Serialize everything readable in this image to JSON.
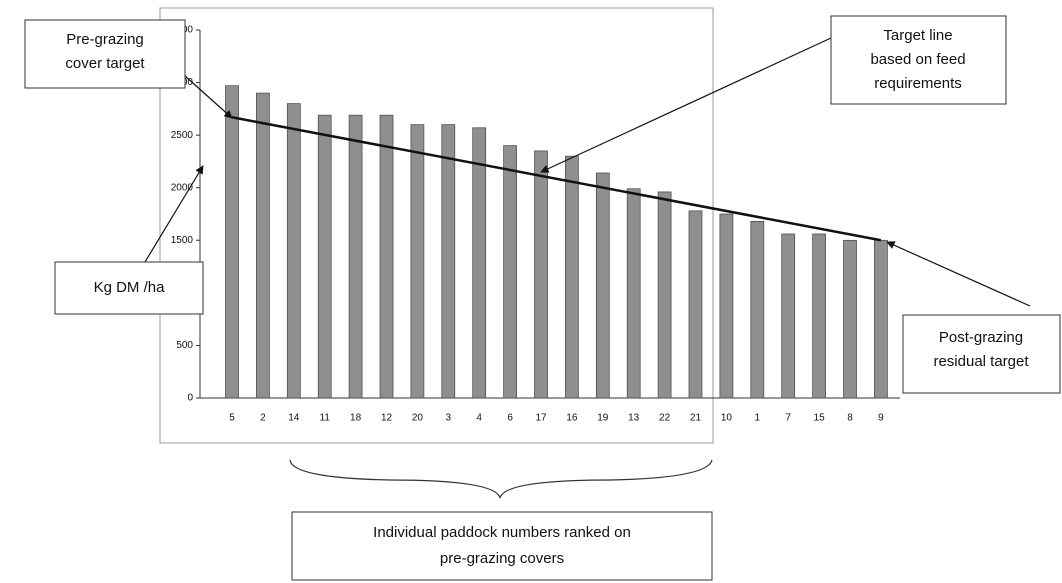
{
  "chart_data": {
    "type": "bar",
    "categories": [
      "5",
      "2",
      "14",
      "11",
      "18",
      "12",
      "20",
      "3",
      "4",
      "6",
      "17",
      "16",
      "19",
      "13",
      "22",
      "21",
      "10",
      "1",
      "7",
      "15",
      "8",
      "9"
    ],
    "values": [
      2970,
      2900,
      2800,
      2690,
      2690,
      2690,
      2600,
      2600,
      2570,
      2400,
      2350,
      2300,
      2140,
      1990,
      1960,
      1780,
      1750,
      1680,
      1560,
      1560,
      1500,
      1500
    ],
    "color": "#8f8f8f",
    "ylim": [
      0,
      3500
    ],
    "yticks": [
      0,
      500,
      1000,
      1500,
      2000,
      2500,
      3000,
      3500
    ],
    "target_line": {
      "start": 2670,
      "end": 1500
    },
    "annotations": {
      "pre_grazing": [
        "Pre-grazing",
        "cover target"
      ],
      "target_line": [
        "Target line",
        "based on feed",
        "requirements"
      ],
      "y_label": [
        "Kg DM /ha"
      ],
      "post_grazing": [
        "Post-grazing",
        "residual target"
      ],
      "x_label": [
        "Individual paddock numbers ranked on",
        "pre-grazing covers"
      ]
    }
  }
}
